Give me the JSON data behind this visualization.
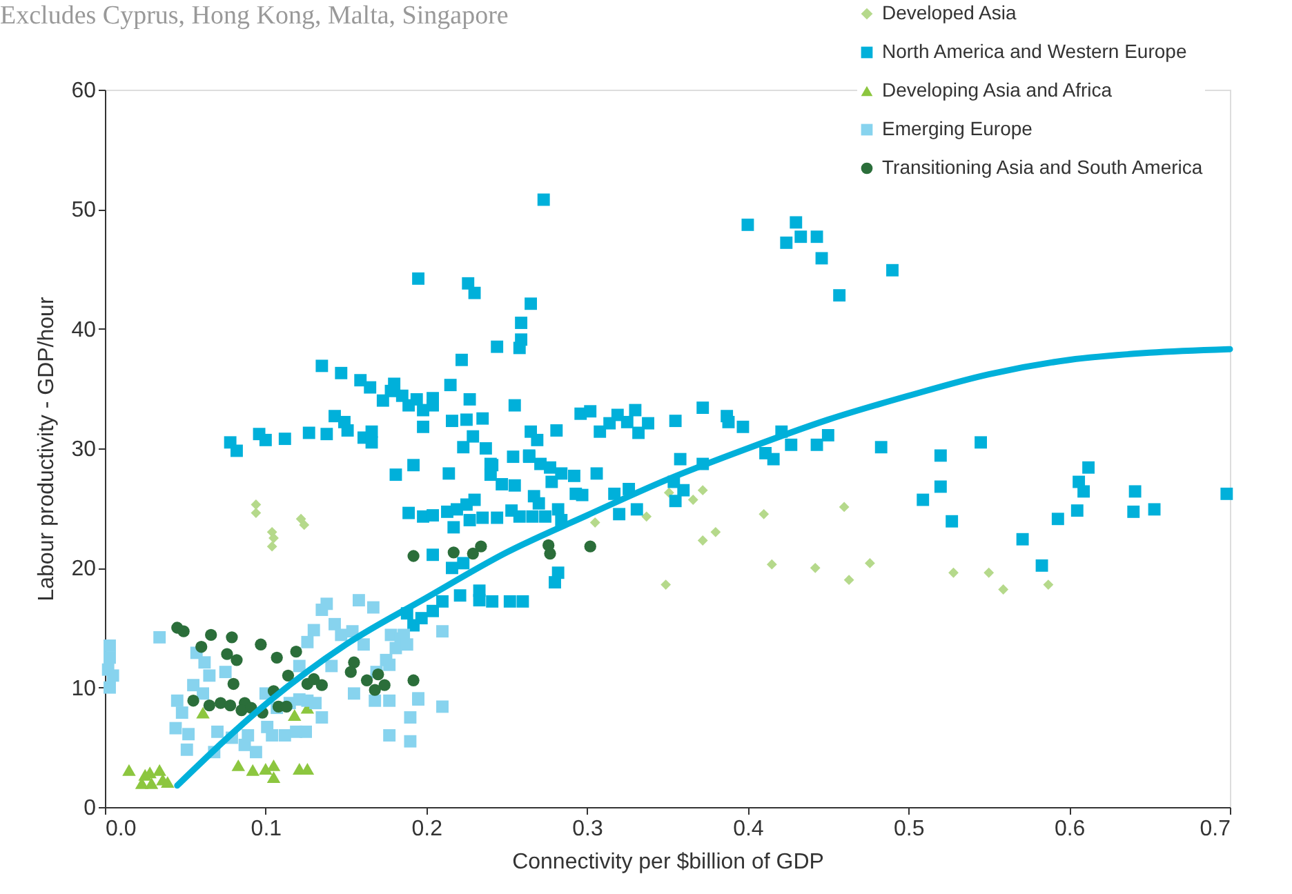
{
  "chart_data": {
    "type": "scatter",
    "xlabel": "Connectivity per $billion of GDP",
    "ylabel": "Labour productivity - GDP/hour",
    "annotations": [
      "Excludes Cyprus, Hong Kong, Malta, Singapore"
    ],
    "xlim": [
      0,
      0.7
    ],
    "xticks": [
      {
        "value": 0,
        "label": "0.0"
      },
      0.1,
      0.2,
      0.3,
      0.4,
      0.5,
      0.6,
      0.7
    ],
    "ylim": [
      0,
      60
    ],
    "yticks": [
      0,
      10,
      20,
      30,
      40,
      50,
      60
    ],
    "grid": false,
    "legend": "top right",
    "series": [
      {
        "name": "Developed Asia",
        "color": "#b5d98b",
        "marker": "diamond",
        "x": [
          0.094,
          0.094,
          0.104,
          0.104,
          0.105,
          0.122,
          0.124,
          0.305,
          0.337,
          0.349,
          0.351,
          0.366,
          0.372,
          0.372,
          0.38,
          0.41,
          0.415,
          0.442,
          0.46,
          0.463,
          0.476,
          0.528,
          0.55,
          0.559,
          0.587
        ],
        "values": [
          25.3,
          24.6,
          23.0,
          21.8,
          22.5,
          24.1,
          23.6,
          23.8,
          24.3,
          18.6,
          26.3,
          25.7,
          26.5,
          22.3,
          23.0,
          24.5,
          20.3,
          20.0,
          25.1,
          19.0,
          20.4,
          19.6,
          19.6,
          18.2,
          18.6
        ]
      },
      {
        "name": "North America and Western Europe",
        "color": "#00b0da",
        "marker": "square",
        "x": [
          0.273,
          0.195,
          0.226,
          0.23,
          0.265,
          0.259,
          0.259,
          0.258,
          0.244,
          0.222,
          0.135,
          0.147,
          0.159,
          0.165,
          0.173,
          0.18,
          0.178,
          0.185,
          0.189,
          0.194,
          0.198,
          0.204,
          0.204,
          0.215,
          0.227,
          0.255,
          0.198,
          0.216,
          0.225,
          0.235,
          0.229,
          0.223,
          0.237,
          0.143,
          0.149,
          0.151,
          0.127,
          0.138,
          0.161,
          0.166,
          0.166,
          0.112,
          0.1,
          0.096,
          0.078,
          0.082,
          0.192,
          0.181,
          0.214,
          0.241,
          0.24,
          0.247,
          0.255,
          0.254,
          0.264,
          0.265,
          0.269,
          0.281,
          0.271,
          0.277,
          0.284,
          0.292,
          0.306,
          0.296,
          0.302,
          0.308,
          0.314,
          0.319,
          0.278,
          0.267,
          0.27,
          0.293,
          0.297,
          0.317,
          0.189,
          0.198,
          0.204,
          0.213,
          0.219,
          0.225,
          0.23,
          0.227,
          0.235,
          0.244,
          0.253,
          0.258,
          0.266,
          0.274,
          0.282,
          0.284,
          0.32,
          0.217,
          0.204,
          0.216,
          0.223,
          0.282,
          0.28,
          0.21,
          0.221,
          0.233,
          0.233,
          0.241,
          0.252,
          0.26,
          0.192,
          0.197,
          0.204,
          0.188,
          0.4,
          0.43,
          0.424,
          0.433,
          0.443,
          0.446,
          0.49,
          0.457,
          0.33,
          0.325,
          0.338,
          0.332,
          0.355,
          0.372,
          0.387,
          0.388,
          0.397,
          0.421,
          0.427,
          0.411,
          0.416,
          0.443,
          0.45,
          0.483,
          0.52,
          0.545,
          0.52,
          0.509,
          0.527,
          0.571,
          0.583,
          0.593,
          0.605,
          0.606,
          0.609,
          0.612,
          0.641,
          0.64,
          0.653,
          0.698,
          0.326,
          0.358,
          0.372,
          0.354,
          0.36,
          0.355,
          0.331,
          0.264,
          0.24
        ],
        "values": [
          50.8,
          44.2,
          43.8,
          43.0,
          42.1,
          40.5,
          39.1,
          38.4,
          38.5,
          37.4,
          36.9,
          36.3,
          35.7,
          35.1,
          34.0,
          35.4,
          34.8,
          34.4,
          33.6,
          34.1,
          33.2,
          34.2,
          33.6,
          35.3,
          34.1,
          33.6,
          31.8,
          32.3,
          32.4,
          32.5,
          31.0,
          30.1,
          30.0,
          32.7,
          32.2,
          31.5,
          31.3,
          31.2,
          30.9,
          31.4,
          30.5,
          30.8,
          30.7,
          31.2,
          30.5,
          29.8,
          28.6,
          27.8,
          27.9,
          28.6,
          27.8,
          27.0,
          26.9,
          29.3,
          29.4,
          31.4,
          30.7,
          31.5,
          28.7,
          28.4,
          27.9,
          27.7,
          27.9,
          32.9,
          33.1,
          31.4,
          32.1,
          32.8,
          27.2,
          26.0,
          25.4,
          26.2,
          26.1,
          26.2,
          24.6,
          24.3,
          24.4,
          24.7,
          24.9,
          25.3,
          25.7,
          24.0,
          24.2,
          24.2,
          24.8,
          24.3,
          24.3,
          24.3,
          24.9,
          24.0,
          24.5,
          23.4,
          21.1,
          20.0,
          20.4,
          19.6,
          18.8,
          17.2,
          17.7,
          18.1,
          17.3,
          17.2,
          17.2,
          17.2,
          15.2,
          15.8,
          16.4,
          16.2,
          48.7,
          48.9,
          47.2,
          47.7,
          47.7,
          45.9,
          44.9,
          42.8,
          33.2,
          32.2,
          32.1,
          31.3,
          32.3,
          33.4,
          32.7,
          32.2,
          31.8,
          31.4,
          30.3,
          29.6,
          29.1,
          30.3,
          31.1,
          30.1,
          29.4,
          30.5,
          26.8,
          25.7,
          23.9,
          22.4,
          20.2,
          24.1,
          24.8,
          27.2,
          26.4,
          28.4,
          26.4,
          24.7,
          24.9,
          26.2,
          26.6,
          29.1,
          28.7,
          27.2,
          26.5,
          25.6,
          24.9,
          29.3,
          28.7
        ]
      },
      {
        "name": "Developing Asia and Africa",
        "color": "#8cc63f",
        "marker": "triangle",
        "x": [
          0.015,
          0.025,
          0.023,
          0.029,
          0.034,
          0.036,
          0.039,
          0.028,
          0.083,
          0.092,
          0.1,
          0.105,
          0.105,
          0.121,
          0.126,
          0.061,
          0.118,
          0.126
        ],
        "values": [
          3.1,
          2.7,
          2.0,
          2.0,
          3.1,
          2.3,
          2.1,
          2.9,
          3.5,
          3.1,
          3.2,
          3.5,
          2.5,
          3.2,
          3.2,
          7.9,
          7.7,
          8.3
        ]
      },
      {
        "name": "Emerging Europe",
        "color": "#87d3ee",
        "marker": "square",
        "x": [
          0.003,
          0.003,
          0.002,
          0.005,
          0.003,
          0.034,
          0.057,
          0.062,
          0.065,
          0.055,
          0.061,
          0.075,
          0.045,
          0.048,
          0.044,
          0.052,
          0.051,
          0.068,
          0.07,
          0.079,
          0.087,
          0.094,
          0.089,
          0.101,
          0.104,
          0.112,
          0.119,
          0.125,
          0.1,
          0.107,
          0.115,
          0.121,
          0.131,
          0.135,
          0.126,
          0.121,
          0.126,
          0.13,
          0.135,
          0.138,
          0.143,
          0.147,
          0.154,
          0.158,
          0.161,
          0.167,
          0.175,
          0.178,
          0.181,
          0.184,
          0.186,
          0.169,
          0.177,
          0.141,
          0.155,
          0.168,
          0.177,
          0.195,
          0.19,
          0.177,
          0.19,
          0.21,
          0.195,
          0.21,
          0.188
        ],
        "values": [
          13.5,
          12.5,
          11.5,
          11.0,
          10.0,
          14.2,
          12.9,
          12.1,
          11.0,
          10.2,
          9.5,
          11.3,
          8.9,
          7.9,
          6.6,
          6.1,
          4.8,
          4.6,
          6.3,
          5.8,
          5.2,
          4.6,
          6.0,
          6.7,
          6.0,
          6.0,
          6.3,
          6.3,
          9.5,
          8.3,
          8.7,
          9.0,
          8.7,
          7.5,
          8.9,
          11.8,
          13.8,
          14.8,
          16.5,
          17.0,
          15.3,
          14.4,
          14.7,
          17.3,
          13.6,
          16.7,
          12.3,
          14.4,
          13.3,
          14.1,
          14.4,
          11.3,
          11.9,
          11.8,
          9.5,
          8.9,
          8.9,
          9.0,
          7.5,
          6.0,
          5.5,
          14.7,
          9.1,
          8.4,
          13.6
        ]
      },
      {
        "name": "Transitioning Asia and South America",
        "color": "#2b6e3a",
        "marker": "circle",
        "x": [
          0.045,
          0.049,
          0.066,
          0.079,
          0.06,
          0.076,
          0.082,
          0.097,
          0.107,
          0.119,
          0.08,
          0.114,
          0.105,
          0.055,
          0.065,
          0.072,
          0.078,
          0.087,
          0.085,
          0.091,
          0.098,
          0.108,
          0.113,
          0.126,
          0.135,
          0.13,
          0.155,
          0.153,
          0.163,
          0.17,
          0.168,
          0.174,
          0.192,
          0.192,
          0.217,
          0.229,
          0.234,
          0.276,
          0.277,
          0.302
        ],
        "values": [
          15.0,
          14.7,
          14.4,
          14.2,
          13.4,
          12.8,
          12.3,
          13.6,
          12.5,
          13.0,
          10.3,
          11.0,
          9.7,
          8.9,
          8.5,
          8.7,
          8.5,
          8.7,
          8.1,
          8.3,
          7.9,
          8.4,
          8.4,
          10.3,
          10.2,
          10.7,
          12.1,
          11.3,
          10.6,
          11.1,
          9.8,
          10.2,
          10.6,
          21.0,
          21.3,
          21.2,
          21.8,
          21.9,
          21.2,
          21.8
        ]
      },
      {
        "type": "line",
        "color": "#00b0da",
        "marker": "none",
        "line_style": "solid",
        "x": [
          0.045,
          0.1,
          0.15,
          0.2,
          0.25,
          0.3,
          0.35,
          0.4,
          0.45,
          0.5,
          0.55,
          0.6,
          0.65,
          0.7
        ],
        "values": [
          1.8,
          8.6,
          13.6,
          17.5,
          21.3,
          24.4,
          27.4,
          30.0,
          32.4,
          34.4,
          36.2,
          37.4,
          38.0,
          38.3
        ]
      }
    ]
  }
}
